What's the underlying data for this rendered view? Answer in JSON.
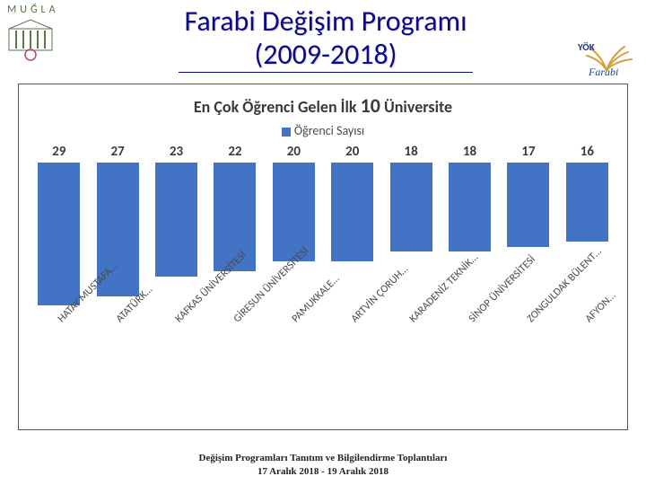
{
  "header": {
    "mugla_text": "MUĞLA",
    "title_line1": "Farabi Değişim Programı",
    "title_line2": "(2009-2018)"
  },
  "chart": {
    "type": "bar",
    "title_prefix": "En Çok Öğrenci Gelen İlk ",
    "title_big": "10",
    "title_suffix": " Üniversite",
    "legend_label": "Öğrenci Sayısı",
    "legend_color": "#4373c5",
    "bar_color": "#4373c5",
    "ylim_max": 29,
    "value_fontsize": 15,
    "label_fontsize": 12,
    "title_fontsize": 18,
    "background_color": "#ffffff",
    "border_color": "#555555",
    "text_color": "#3a3a3a",
    "label_rotation_deg": -45,
    "label_color": "#4a4a4a",
    "bars": [
      {
        "label": "HATAY MUSTAFA…",
        "value": 29
      },
      {
        "label": "ATATÜRK…",
        "value": 27
      },
      {
        "label": "KAFKAS ÜNİVERSİTESİ",
        "value": 23
      },
      {
        "label": "GİRESUN ÜNİVERSİTESİ",
        "value": 22
      },
      {
        "label": "PAMUKKALE…",
        "value": 20
      },
      {
        "label": "ARTVİN ÇORUH…",
        "value": 20
      },
      {
        "label": "KARADENİZ TEKNİK…",
        "value": 18
      },
      {
        "label": "SİNOP ÜNİVERSİTESİ",
        "value": 18
      },
      {
        "label": "ZONGULDAK BÜLENT…",
        "value": 17
      },
      {
        "label": "AFYON…",
        "value": 16
      }
    ]
  },
  "footer": {
    "line1": "Değişim Programları Tanıtım ve Bilgilendirme Toplantıları",
    "line2": "17 Aralık 2018 - 19 Aralık 2018"
  }
}
